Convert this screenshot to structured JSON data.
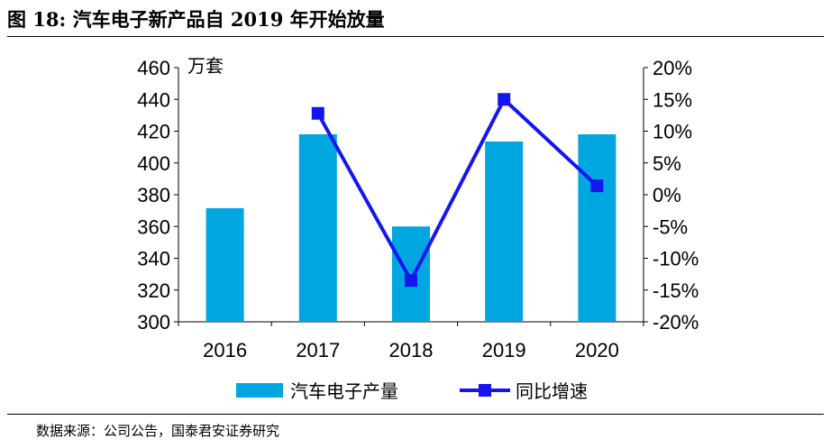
{
  "title": "图 18:  汽车电子新产品自 2019 年开始放量",
  "source": "数据来源：公司公告，国泰君安证券研究",
  "chart_data": {
    "type": "bar+line",
    "categories": [
      "2016",
      "2017",
      "2018",
      "2019",
      "2020"
    ],
    "unit_left": "万套",
    "series": [
      {
        "name": "汽车电子产量",
        "type": "bar",
        "axis": "left",
        "color": "#00A6E0",
        "values": [
          371.5,
          418,
          360,
          413.5,
          418
        ]
      },
      {
        "name": "同比增速",
        "type": "line",
        "axis": "right",
        "color": "#1515F0",
        "values": [
          null,
          12.8,
          -13.5,
          15.0,
          1.4
        ]
      }
    ],
    "ylim_left": [
      300,
      460
    ],
    "yticks_left": [
      "300",
      "320",
      "340",
      "360",
      "380",
      "400",
      "420",
      "440",
      "460"
    ],
    "ylim_right": [
      -20,
      20
    ],
    "yticks_right": [
      "-20%",
      "-15%",
      "-10%",
      "-5%",
      "0%",
      "5%",
      "10%",
      "15%",
      "20%"
    ],
    "legend": "bottom",
    "grid": false
  }
}
